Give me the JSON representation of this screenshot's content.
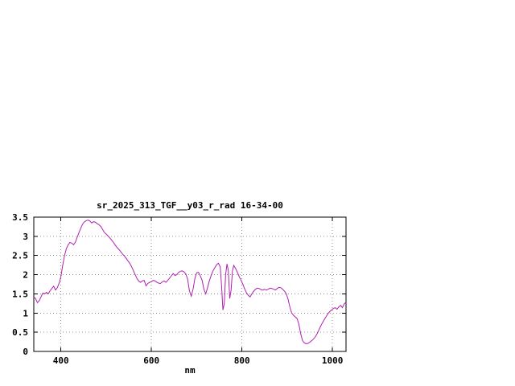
{
  "window": {
    "background": "#ffffff"
  },
  "chart_data": {
    "type": "line",
    "title": "sr_2025_313_TGF__y03_r_rad 16-34-00",
    "xlabel": "nm",
    "ylabel": "",
    "xlim": [
      340,
      1030
    ],
    "ylim": [
      0,
      3.5
    ],
    "xticks": [
      400,
      600,
      800,
      1000
    ],
    "yticks": [
      0,
      0.5,
      1,
      1.5,
      2,
      2.5,
      3,
      3.5
    ],
    "grid": true,
    "legend": "none",
    "line_color": "#b020b0",
    "axis_color": "#000000",
    "grid_color": "#909090",
    "x": [
      340,
      344,
      348,
      352,
      356,
      360,
      364,
      368,
      372,
      376,
      380,
      384,
      388,
      392,
      396,
      400,
      404,
      408,
      412,
      416,
      420,
      424,
      428,
      432,
      436,
      440,
      444,
      448,
      452,
      456,
      460,
      464,
      468,
      472,
      476,
      480,
      484,
      488,
      492,
      496,
      500,
      504,
      508,
      512,
      516,
      520,
      524,
      528,
      532,
      536,
      540,
      544,
      548,
      552,
      556,
      560,
      564,
      568,
      572,
      576,
      580,
      584,
      588,
      592,
      596,
      600,
      604,
      608,
      612,
      616,
      620,
      624,
      628,
      632,
      636,
      640,
      644,
      648,
      652,
      656,
      660,
      664,
      668,
      672,
      676,
      680,
      684,
      688,
      692,
      696,
      700,
      704,
      708,
      712,
      716,
      720,
      724,
      728,
      732,
      736,
      740,
      744,
      748,
      752,
      755,
      758,
      761,
      764,
      767,
      770,
      773,
      776,
      779,
      782,
      786,
      790,
      794,
      798,
      802,
      806,
      810,
      814,
      818,
      822,
      826,
      830,
      834,
      838,
      842,
      846,
      850,
      854,
      858,
      862,
      866,
      870,
      874,
      878,
      882,
      886,
      890,
      894,
      898,
      902,
      906,
      910,
      914,
      918,
      922,
      926,
      930,
      934,
      938,
      942,
      946,
      950,
      954,
      958,
      962,
      966,
      970,
      974,
      978,
      982,
      986,
      990,
      994,
      998,
      1002,
      1006,
      1010,
      1014,
      1018,
      1022,
      1026,
      1030
    ],
    "y": [
      1.42,
      1.38,
      1.27,
      1.32,
      1.42,
      1.52,
      1.5,
      1.54,
      1.5,
      1.58,
      1.64,
      1.7,
      1.6,
      1.66,
      1.78,
      1.95,
      2.25,
      2.5,
      2.68,
      2.78,
      2.84,
      2.82,
      2.78,
      2.85,
      2.98,
      3.1,
      3.22,
      3.32,
      3.38,
      3.41,
      3.42,
      3.4,
      3.35,
      3.38,
      3.37,
      3.33,
      3.3,
      3.26,
      3.18,
      3.1,
      3.06,
      3.01,
      2.96,
      2.9,
      2.84,
      2.77,
      2.71,
      2.66,
      2.6,
      2.54,
      2.49,
      2.43,
      2.36,
      2.3,
      2.21,
      2.11,
      2.0,
      1.9,
      1.83,
      1.8,
      1.84,
      1.85,
      1.71,
      1.77,
      1.8,
      1.82,
      1.85,
      1.84,
      1.8,
      1.78,
      1.77,
      1.81,
      1.84,
      1.8,
      1.85,
      1.91,
      1.97,
      2.03,
      1.98,
      2.0,
      2.06,
      2.09,
      2.1,
      2.07,
      2.02,
      1.88,
      1.58,
      1.44,
      1.62,
      1.9,
      2.05,
      2.06,
      1.97,
      1.85,
      1.62,
      1.5,
      1.66,
      1.84,
      1.98,
      2.1,
      2.18,
      2.26,
      2.3,
      2.2,
      1.7,
      1.08,
      1.25,
      2.0,
      2.28,
      2.1,
      1.38,
      1.6,
      2.1,
      2.24,
      2.16,
      2.06,
      1.95,
      1.86,
      1.75,
      1.63,
      1.53,
      1.46,
      1.42,
      1.5,
      1.57,
      1.62,
      1.65,
      1.64,
      1.61,
      1.6,
      1.62,
      1.6,
      1.62,
      1.65,
      1.64,
      1.62,
      1.6,
      1.64,
      1.67,
      1.66,
      1.62,
      1.57,
      1.5,
      1.36,
      1.15,
      1.0,
      0.94,
      0.9,
      0.85,
      0.7,
      0.45,
      0.28,
      0.22,
      0.2,
      0.21,
      0.24,
      0.28,
      0.32,
      0.38,
      0.46,
      0.56,
      0.66,
      0.75,
      0.83,
      0.91,
      0.98,
      1.04,
      1.08,
      1.12,
      1.14,
      1.1,
      1.16,
      1.2,
      1.14,
      1.24,
      1.28
    ]
  }
}
